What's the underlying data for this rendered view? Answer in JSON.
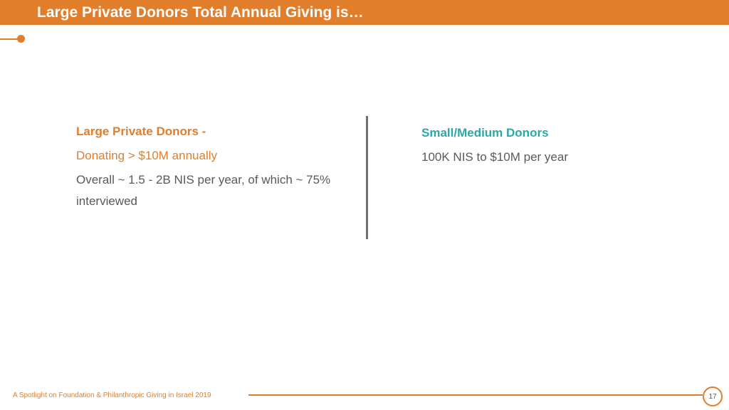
{
  "slide": {
    "title": "Large Private Donors Total Annual Giving is…",
    "colors": {
      "accent": "#E07E2C",
      "teal": "#2AA7A8",
      "body_text": "#595959",
      "divider": "#6f6f6f"
    }
  },
  "left": {
    "heading": "Large Private Donors -",
    "subheading": "Donating > $10M annually",
    "body": "Overall ~ 1.5 - 2B NIS per year,  of which ~ 75% interviewed"
  },
  "right": {
    "heading": "Small/Medium Donors",
    "body": "100K NIS to $10M per year"
  },
  "footer": {
    "text": "A Spotlight on Foundation & Philanthropic Giving in Israel 2019",
    "page_number": "17"
  }
}
